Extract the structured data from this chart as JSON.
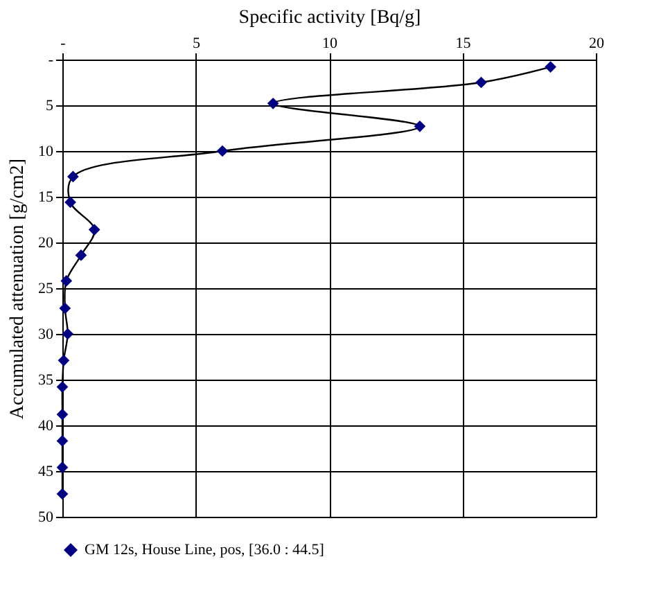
{
  "chart_data": {
    "type": "line",
    "xlabel": "Specific activity [Bq/g]",
    "ylabel": "Accumulated attenuation  [g/cm2]",
    "xlim": [
      0,
      20
    ],
    "xticks": [
      {
        "value": 0,
        "label": "-"
      },
      5,
      10,
      15,
      20
    ],
    "ylim": [
      50,
      0
    ],
    "yticks": [
      {
        "value": 0,
        "label": "-"
      },
      5,
      10,
      15,
      20,
      25,
      30,
      35,
      40,
      45,
      50
    ],
    "grid": true,
    "legend": "bottom",
    "marker": "diamond",
    "line_style": "solid",
    "series": [
      {
        "name": "GM 12s, House Line, pos, [36.0 : 44.5]",
        "color": "#000080",
        "x": [
          18.3,
          15.7,
          7.9,
          13.4,
          6.0,
          0.4,
          0.3,
          1.2,
          0.7,
          0.15,
          0.1,
          0.2,
          0.05,
          0.0,
          0.0,
          0.0,
          0.0,
          0.0
        ],
        "values": [
          0.8,
          2.5,
          4.8,
          7.3,
          10.0,
          12.8,
          15.6,
          18.6,
          21.4,
          24.2,
          27.2,
          30.0,
          32.9,
          35.8,
          38.8,
          41.7,
          44.6,
          47.5
        ]
      }
    ]
  }
}
